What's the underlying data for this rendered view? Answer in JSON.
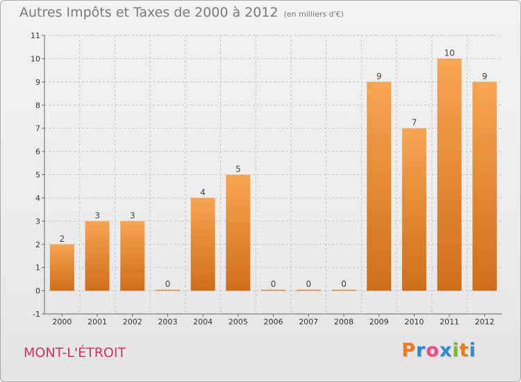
{
  "title": "Autres Impôts et Taxes de 2000 à 2012",
  "subtitle": "(en milliers d'€)",
  "commune": "MONT-L'ÉTROIT",
  "logo": {
    "letters": [
      "P",
      "r",
      "o",
      "x",
      "i",
      "t",
      "i"
    ],
    "colors": [
      "#e87c1e",
      "#2e8bd0",
      "#ee4c8a",
      "#2e8bd0",
      "#7cba2a",
      "#e87c1e",
      "#2e8bd0"
    ]
  },
  "colors": {
    "bar_light": "#f7a554",
    "bar_dark": "#cf6e1a",
    "axis": "#666666",
    "grid": "#c8c8c8",
    "tick_text": "#333333",
    "label_text": "#444444",
    "commune": "#d0306a"
  },
  "chart_data": {
    "type": "bar",
    "title": "Autres Impôts et Taxes de 2000 à 2012",
    "ylabel": "",
    "xlabel": "",
    "categories": [
      "2000",
      "2001",
      "2002",
      "2003",
      "2004",
      "2005",
      "2006",
      "2007",
      "2008",
      "2009",
      "2010",
      "2011",
      "2012"
    ],
    "values": [
      2,
      3,
      3,
      0,
      4,
      5,
      0,
      0,
      0,
      9,
      7,
      10,
      9
    ],
    "data_labels": [
      "2",
      "3",
      "3",
      "0",
      "4",
      "5",
      "0",
      "0",
      "0",
      "9",
      "7",
      "10",
      "9"
    ],
    "ylim": [
      -1,
      11
    ],
    "yticks": [
      -1,
      0,
      1,
      2,
      3,
      4,
      5,
      6,
      7,
      8,
      9,
      10,
      11
    ],
    "grid": "horizontal dashed"
  }
}
